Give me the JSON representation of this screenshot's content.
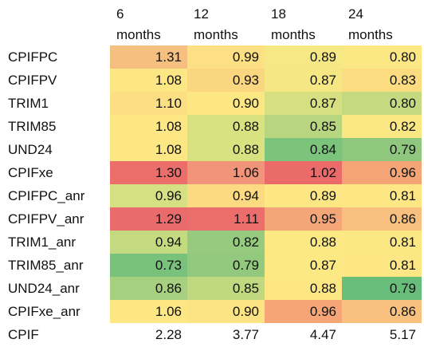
{
  "table": {
    "columns": [
      [
        "6",
        "months"
      ],
      [
        "12",
        "months"
      ],
      [
        "18",
        "months"
      ],
      [
        "24",
        "months"
      ]
    ],
    "rows": [
      {
        "label": "CPIFPC",
        "values": [
          "1.31",
          "0.99",
          "0.89",
          "0.80"
        ],
        "colors": [
          "#f5bf7f",
          "#fde083",
          "#f6e884",
          "#fbe884"
        ]
      },
      {
        "label": "CPIFPV",
        "values": [
          "1.08",
          "0.93",
          "0.87",
          "0.83"
        ],
        "colors": [
          "#fde784",
          "#fad680",
          "#f4e784",
          "#fbdc81"
        ]
      },
      {
        "label": "TRIM1",
        "values": [
          "1.10",
          "0.90",
          "0.87",
          "0.80"
        ],
        "colors": [
          "#fbdf82",
          "#fce783",
          "#d6e080",
          "#c3da80"
        ]
      },
      {
        "label": "TRIM85",
        "values": [
          "1.08",
          "0.88",
          "0.85",
          "0.82"
        ],
        "colors": [
          "#fde784",
          "#d9e181",
          "#b7d67f",
          "#fbe784"
        ]
      },
      {
        "label": "UND24",
        "values": [
          "1.08",
          "0.88",
          "0.84",
          "0.79"
        ],
        "colors": [
          "#fde784",
          "#d9e181",
          "#7cc37c",
          "#8ec77d"
        ]
      },
      {
        "label": "CPIFxe",
        "values": [
          "1.30",
          "1.06",
          "1.02",
          "0.96"
        ],
        "colors": [
          "#ec6e6b",
          "#f0957a",
          "#eb6a6a",
          "#f5a476"
        ]
      },
      {
        "label": "CPIFPC_anr",
        "values": [
          "0.96",
          "0.94",
          "0.89",
          "0.81"
        ],
        "colors": [
          "#d4e081",
          "#fbda82",
          "#fde784",
          "#fde784"
        ]
      },
      {
        "label": "CPIFPV_anr",
        "values": [
          "1.29",
          "1.11",
          "0.95",
          "0.86"
        ],
        "colors": [
          "#ea6b6b",
          "#eb6d6c",
          "#f4a678",
          "#f7c07e"
        ]
      },
      {
        "label": "TRIM1_anr",
        "values": [
          "0.94",
          "0.82",
          "0.88",
          "0.81"
        ],
        "colors": [
          "#c4da80",
          "#96ca7e",
          "#fce983",
          "#fbe884"
        ]
      },
      {
        "label": "TRIM85_anr",
        "values": [
          "0.73",
          "0.79",
          "0.87",
          "0.81"
        ],
        "colors": [
          "#78c27c",
          "#93c97e",
          "#fce983",
          "#fde784"
        ]
      },
      {
        "label": "UND24_anr",
        "values": [
          "0.86",
          "0.85",
          "0.88",
          "0.79"
        ],
        "colors": [
          "#a6d07f",
          "#c0d880",
          "#fde784",
          "#69bd7b"
        ]
      },
      {
        "label": "CPIFxe_anr",
        "values": [
          "1.06",
          "0.90",
          "0.96",
          "0.86"
        ],
        "colors": [
          "#fde784",
          "#fce383",
          "#f6a577",
          "#f8c27e"
        ]
      },
      {
        "label": "CPIF",
        "values": [
          "2.28",
          "3.77",
          "4.47",
          "5.17"
        ],
        "colors": [
          "#ffffff",
          "#ffffff",
          "#ffffff",
          "#ffffff"
        ]
      }
    ]
  }
}
